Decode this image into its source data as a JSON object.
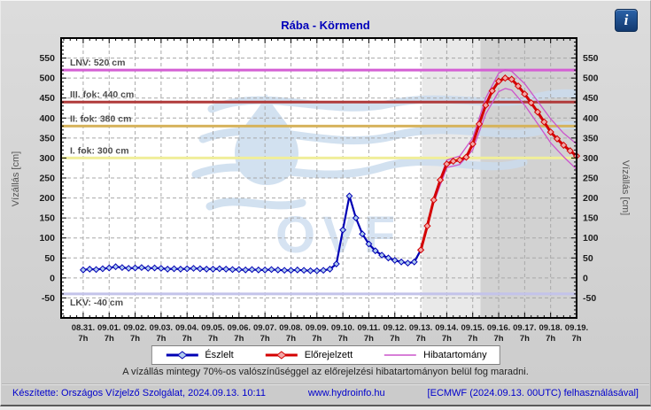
{
  "title": "Rába - Körmend",
  "info_icon_glyph": "i",
  "axis": {
    "y_label_left": "Vízállás [cm]",
    "y_label_right": "Vízállás [cm]"
  },
  "note": "A vízállás mintegy 70%-os valószínűséggel az előrejelzési hibatartományon belül fog maradni.",
  "footer": {
    "created": "Készítette: Országos Vízjelző Szolgálat, 2024.09.13. 10:11",
    "site": "www.hydroinfo.hu",
    "model": "[ECMWF (2024.09.13. 00UTC) felhasználásával]"
  },
  "colors": {
    "title_text": "#0000bb",
    "footer_text": "#0000cc",
    "plot_background": "#ffffff",
    "forecast_shade_light": "#e9e9e9",
    "forecast_shade_dark": "#d2d2d2",
    "grid": "#a8a8a8",
    "watermark": "#cbdcee",
    "observed": "#0000b4",
    "forecast": "#d40000",
    "error_band": "#cc55cc"
  },
  "chart_data": {
    "type": "line",
    "title": "Rába - Körmend",
    "xlabel": "",
    "ylabel": "Vízállás [cm]",
    "ylim": [
      -100,
      600
    ],
    "xlim_days": [
      -0.85,
      19
    ],
    "grid": true,
    "legend_position": "bottom",
    "watermark_text": "OVF",
    "y_ticks": [
      -50,
      0,
      50,
      100,
      150,
      200,
      250,
      300,
      350,
      400,
      450,
      500,
      550
    ],
    "x_ticks": [
      {
        "day": 0,
        "label": "08.31.",
        "sub": "7h"
      },
      {
        "day": 1,
        "label": "09.01.",
        "sub": "7h"
      },
      {
        "day": 2,
        "label": "09.02.",
        "sub": "7h"
      },
      {
        "day": 3,
        "label": "09.03.",
        "sub": "7h"
      },
      {
        "day": 4,
        "label": "09.04.",
        "sub": "7h"
      },
      {
        "day": 5,
        "label": "09.05.",
        "sub": "7h"
      },
      {
        "day": 6,
        "label": "09.06.",
        "sub": "7h"
      },
      {
        "day": 7,
        "label": "09.07.",
        "sub": "7h"
      },
      {
        "day": 8,
        "label": "09.08.",
        "sub": "7h"
      },
      {
        "day": 9,
        "label": "09.09.",
        "sub": "7h"
      },
      {
        "day": 10,
        "label": "09.10.",
        "sub": "7h"
      },
      {
        "day": 11,
        "label": "09.11.",
        "sub": "7h"
      },
      {
        "day": 12,
        "label": "09.12.",
        "sub": "7h"
      },
      {
        "day": 13,
        "label": "09.13.",
        "sub": "7h"
      },
      {
        "day": 14,
        "label": "09.14.",
        "sub": "7h"
      },
      {
        "day": 15,
        "label": "09.15.",
        "sub": "7h"
      },
      {
        "day": 16,
        "label": "09.16.",
        "sub": "7h"
      },
      {
        "day": 17,
        "label": "09.17.",
        "sub": "7h"
      },
      {
        "day": 18,
        "label": "09.18.",
        "sub": "7h"
      },
      {
        "day": 19,
        "label": "09.19.",
        "sub": "7h"
      }
    ],
    "shading": [
      {
        "from_day": 13.05,
        "to_day": 15.3,
        "color": "#e9e9e9"
      },
      {
        "from_day": 15.3,
        "to_day": 19,
        "color": "#d2d2d2"
      }
    ],
    "reference_lines": [
      {
        "label": "LNV: 520 cm",
        "value": 520,
        "color": "#d45fd4",
        "label_pos": "above"
      },
      {
        "label": "III. fok: 440 cm",
        "value": 440,
        "color": "#b03a3a",
        "label_pos": "above"
      },
      {
        "label": "II. fok: 380 cm",
        "value": 380,
        "color": "#d6b35c",
        "label_pos": "above"
      },
      {
        "label": "I. fok: 300 cm",
        "value": 300,
        "color": "#f0ee9a",
        "label_pos": "above"
      },
      {
        "label": "LKV: -40 cm",
        "value": -40,
        "color": "#c3c3ea",
        "label_pos": "below"
      }
    ],
    "series": [
      {
        "name": "Észlelt",
        "color": "#0000b4",
        "width": 2.2,
        "marker": "diamond",
        "marker_fill": "#b0ccee",
        "marker_size": 3.2,
        "x": [
          0,
          0.25,
          0.5,
          0.75,
          1,
          1.25,
          1.5,
          1.75,
          2,
          2.25,
          2.5,
          2.75,
          3,
          3.25,
          3.5,
          3.75,
          4,
          4.25,
          4.5,
          4.75,
          5,
          5.25,
          5.5,
          5.75,
          6,
          6.25,
          6.5,
          6.75,
          7,
          7.25,
          7.5,
          7.75,
          8,
          8.25,
          8.5,
          8.75,
          9,
          9.25,
          9.5,
          9.75,
          10,
          10.25,
          10.5,
          10.75,
          11,
          11.25,
          11.5,
          11.75,
          12,
          12.25,
          12.5,
          12.75,
          13
        ],
        "values": [
          20,
          22,
          21,
          23,
          25,
          28,
          26,
          24,
          25,
          26,
          24,
          25,
          24,
          22,
          23,
          22,
          23,
          24,
          23,
          22,
          22,
          23,
          22,
          21,
          21,
          20,
          21,
          20,
          20,
          21,
          20,
          19,
          19,
          20,
          19,
          18,
          18,
          19,
          22,
          35,
          120,
          205,
          150,
          110,
          85,
          68,
          57,
          50,
          44,
          40,
          37,
          40,
          70
        ]
      },
      {
        "name": "Hibatartomány felső",
        "color": "#cc55cc",
        "width": 1.3,
        "marker": null,
        "x": [
          13.5,
          14,
          14.5,
          15,
          15.5,
          16,
          16.25,
          16.5,
          17,
          17.5,
          18,
          18.5,
          19
        ],
        "values": [
          202,
          295,
          305,
          350,
          450,
          512,
          521,
          517,
          486,
          442,
          398,
          362,
          335
        ]
      },
      {
        "name": "Hibatartomány alsó",
        "color": "#cc55cc",
        "width": 1.3,
        "marker": null,
        "x": [
          13.5,
          14,
          14.5,
          15,
          15.5,
          16,
          16.25,
          16.5,
          17,
          17.5,
          18,
          18.5,
          19
        ],
        "values": [
          188,
          276,
          284,
          320,
          410,
          466,
          474,
          470,
          432,
          386,
          338,
          303,
          272
        ]
      },
      {
        "name": "Előrejelzett",
        "color": "#d40000",
        "width": 3,
        "marker": "diamond",
        "marker_fill": "#f2a8a8",
        "marker_size": 3.4,
        "x": [
          13,
          13.25,
          13.5,
          13.75,
          14,
          14.25,
          14.5,
          14.75,
          15,
          15.25,
          15.5,
          15.75,
          16,
          16.25,
          16.5,
          16.75,
          17,
          17.25,
          17.5,
          17.75,
          18,
          18.25,
          18.5,
          18.75,
          19
        ],
        "values": [
          70,
          130,
          195,
          245,
          285,
          292,
          295,
          302,
          335,
          385,
          432,
          468,
          492,
          500,
          497,
          480,
          460,
          438,
          415,
          390,
          365,
          348,
          332,
          318,
          305
        ]
      }
    ],
    "legend": [
      {
        "label": "Észlelt",
        "color": "#0000b4",
        "marker": true,
        "marker_fill": "#b0ccee"
      },
      {
        "label": "Előrejelzett",
        "color": "#d40000",
        "marker": true,
        "marker_fill": "#f2a8a8"
      },
      {
        "label": "Hibatartomány",
        "color": "#cc55cc",
        "marker": false,
        "marker_fill": null
      }
    ]
  }
}
